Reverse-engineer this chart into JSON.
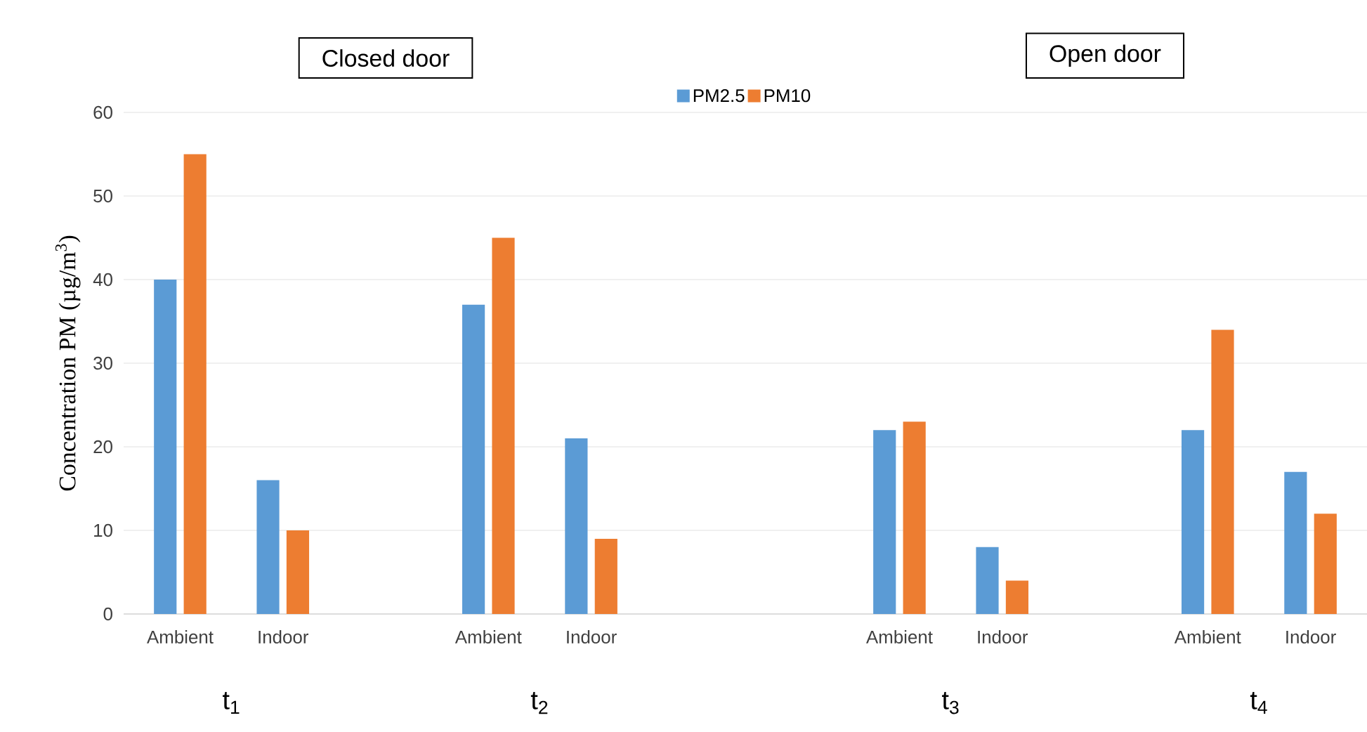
{
  "chart_data": {
    "type": "bar",
    "ylabel": "Concentration PM (µg/m$^{3}$)",
    "categories": [
      "Ambient",
      "Indoor",
      null,
      "Ambient",
      "Indoor",
      null,
      null,
      "Ambient",
      "Indoor",
      null,
      "Ambient",
      "Indoor"
    ],
    "series": [
      {
        "name": "PM2.5",
        "color": "#5b9bd5",
        "values": [
          40,
          16,
          null,
          37,
          21,
          null,
          null,
          22,
          8,
          null,
          22,
          17
        ]
      },
      {
        "name": "PM10",
        "color": "#ed7d31",
        "values": [
          55,
          10,
          null,
          45,
          9,
          null,
          null,
          23,
          4,
          null,
          34,
          12
        ]
      }
    ],
    "ylim": [
      0,
      60
    ],
    "yticks": [
      0,
      10,
      20,
      30,
      40,
      50,
      60
    ],
    "grid": "y",
    "legend": "top",
    "annotations": [
      "Closed door",
      "Open door",
      "t$_{1}$",
      "t$_{2}$",
      "t$_{3}$",
      "t$_{4}$"
    ]
  }
}
